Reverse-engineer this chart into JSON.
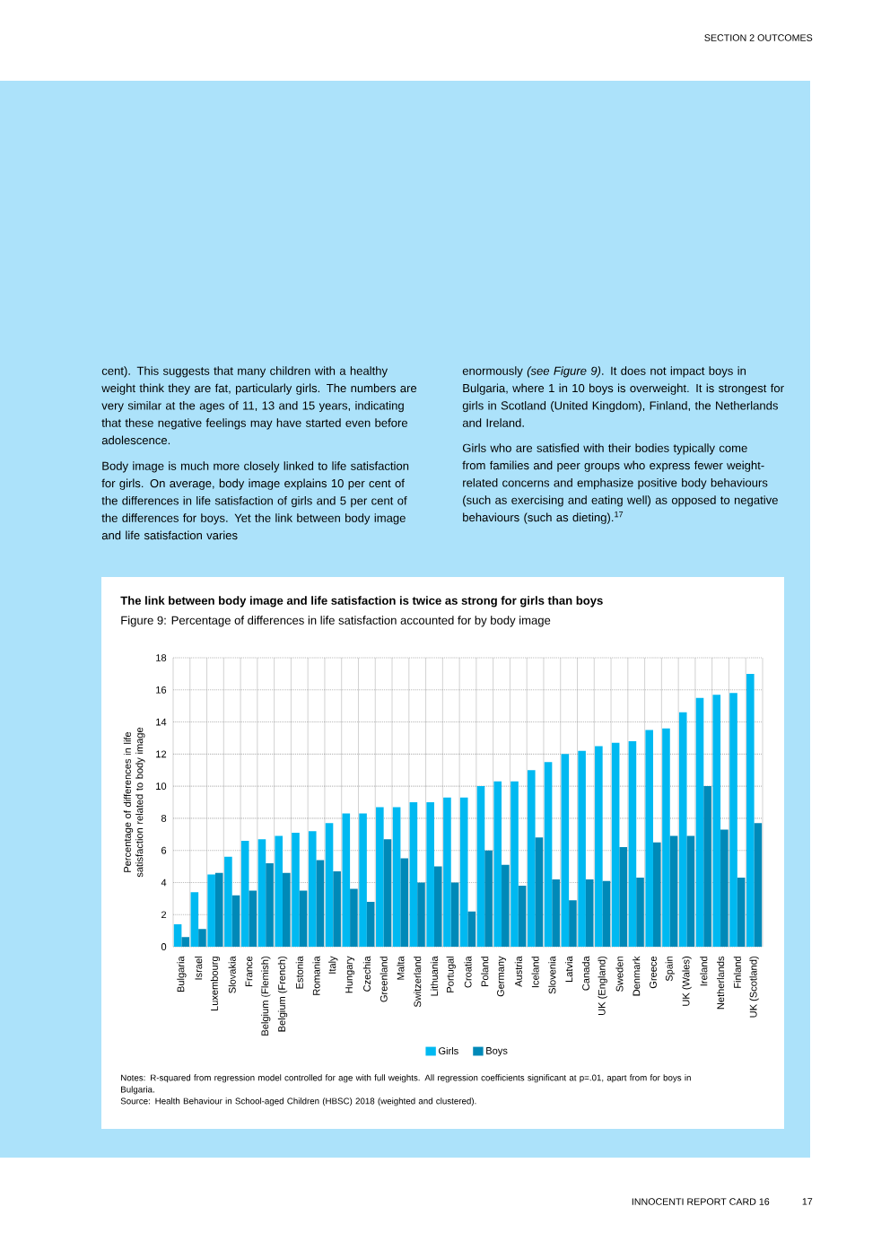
{
  "chart_data": {
    "type": "bar",
    "title": "The link between body image and life satisfaction is twice as strong for girls than boys",
    "subtitle": "Figure 9: Percentage of differences in life satisfaction accounted for by body image",
    "ylabel": "Percentage of differences in life satisfaction related to body image",
    "categories": [
      "Bulgaria",
      "Israel",
      "Luxembourg",
      "Slovakia",
      "France",
      "Belgium (Flemish)",
      "Belgium (French)",
      "Estonia",
      "Romania",
      "Italy",
      "Hungary",
      "Czechia",
      "Greenland",
      "Malta",
      "Switzerland",
      "Lithuania",
      "Portugal",
      "Croatia",
      "Poland",
      "Germany",
      "Austria",
      "Iceland",
      "Slovenia",
      "Latvia",
      "Canada",
      "UK (England)",
      "Sweden",
      "Denmark",
      "Greece",
      "Spain",
      "UK (Wales)",
      "Ireland",
      "Netherlands",
      "Finland",
      "UK (Scotland)"
    ],
    "series": [
      {
        "name": "Girls",
        "color": "#00b9f1",
        "values": [
          1.4,
          3.4,
          4.5,
          5.6,
          6.6,
          6.7,
          6.9,
          7.1,
          7.2,
          7.7,
          8.3,
          8.3,
          8.7,
          8.7,
          9.0,
          9.0,
          9.3,
          9.3,
          10.0,
          10.3,
          10.3,
          11.0,
          11.5,
          12.0,
          12.2,
          12.5,
          12.7,
          12.8,
          13.5,
          13.6,
          14.6,
          15.5,
          15.7,
          15.8,
          17.0
        ]
      },
      {
        "name": "Boys",
        "color": "#0089b8",
        "values": [
          0.6,
          1.1,
          4.6,
          3.2,
          3.5,
          5.2,
          4.6,
          3.5,
          5.4,
          4.7,
          3.6,
          2.8,
          6.7,
          5.5,
          4.0,
          5.0,
          4.0,
          2.2,
          6.0,
          5.1,
          3.8,
          6.8,
          4.2,
          2.9,
          4.2,
          4.1,
          6.2,
          4.3,
          6.5,
          6.9,
          6.9,
          10.0,
          7.3,
          4.3,
          7.7
        ]
      }
    ],
    "ylim": [
      0,
      18
    ],
    "yticks": [
      0,
      2,
      4,
      6,
      8,
      10,
      12,
      14,
      16,
      18
    ],
    "grid": true,
    "legend": "bottom",
    "annotations": [
      "SECTION 2 OUTCOMES",
      "cent). This suggests that many children with a healthy weight think they are fat, particularly girls. The numbers are very similar at the ages of 11, 13 and 15 years, indicating that these negative feelings may have started even before adolescence.",
      "Body image is much more closely linked to life satisfaction for girls. On average, body image explains 10 per cent of the differences in life satisfaction of girls and 5 per cent of the differences for boys. Yet the link between body image and life satisfaction varies",
      "enormously *(see Figure 9)*. It does not impact boys in Bulgaria, where 1 in 10 boys is overweight. It is strongest for girls in Scotland (United Kingdom), Finland, the Netherlands and Ireland.",
      "Girls who are satisfied with their bodies typically come from families and peer groups who express fewer weight-related concerns and emphasize positive body behaviours (such as exercising and eating well) as opposed to negative behaviours (such as dieting).$^{17}$",
      "Notes: R-squared from regression model controlled for age with full weights. All regression coefficients significant at p=.01, apart from for boys in Bulgaria.",
      "Source: Health Behaviour in School-aged Children (HBSC) 2018 (weighted and clustered).",
      "INNOCENTI REPORT CARD 16",
      "17"
    ]
  }
}
